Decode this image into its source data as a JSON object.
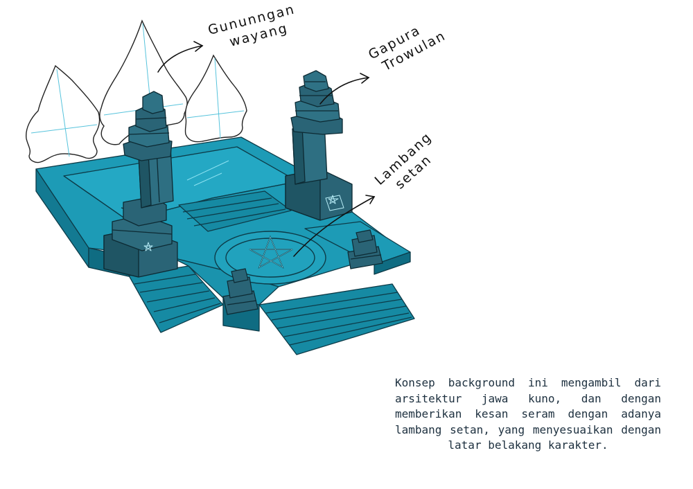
{
  "annotations": {
    "gunungan": "Gununngan\nwayang",
    "gapura": "Gapura\nTrowulan",
    "lambang": "Lambang\nsetan"
  },
  "description": "Konsep background ini mengambil dari arsitektur jawa kuno, dan dengan memberikan kesan seram dengan adanya lambang setan, yang menyesuaikan dengan latar belakang karakter.",
  "colors": {
    "teal": "#168aa3",
    "teal_light": "#24a8c4",
    "teal_dark": "#0f6c82",
    "stone": "#2a6476",
    "ink": "#1a1a1a",
    "guide": "#56c3dc"
  }
}
